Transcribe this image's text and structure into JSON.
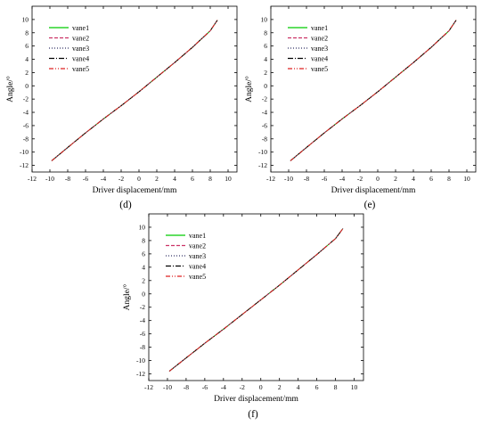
{
  "chart_data": [
    {
      "type": "line",
      "panel_label": "(d)",
      "xlabel": "Driver displacement/mm",
      "ylabel": "Angle/°",
      "xlim": [
        -12,
        11
      ],
      "ylim": [
        -13,
        12
      ],
      "xticks": [
        -12,
        -10,
        -8,
        -6,
        -4,
        -2,
        0,
        2,
        4,
        6,
        8,
        10
      ],
      "yticks": [
        -12,
        -10,
        -8,
        -6,
        -4,
        -2,
        0,
        2,
        4,
        6,
        8,
        10
      ],
      "grid": false,
      "legend_position": "top-left",
      "series": [
        {
          "name": "vane1",
          "color": "#00cc00",
          "dash": "solid",
          "x": [
            -9.8,
            -8,
            -6,
            -4,
            -2,
            0,
            2,
            4,
            6,
            8,
            8.8
          ],
          "y": [
            -11.3,
            -9.3,
            -7.1,
            -5.0,
            -3.0,
            -0.9,
            1.3,
            3.5,
            5.8,
            8.3,
            9.9
          ]
        },
        {
          "name": "vane2",
          "color": "#cc3366",
          "dash": "dashed",
          "x": [
            -9.8,
            -8,
            -6,
            -4,
            -2,
            0,
            2,
            4,
            6,
            8,
            8.8
          ],
          "y": [
            -11.3,
            -9.3,
            -7.1,
            -5.0,
            -3.0,
            -0.9,
            1.3,
            3.5,
            5.8,
            8.3,
            9.9
          ]
        },
        {
          "name": "vane3",
          "color": "#333366",
          "dash": "dotted",
          "x": [
            -9.8,
            -8,
            -6,
            -4,
            -2,
            0,
            2,
            4,
            6,
            8,
            8.8
          ],
          "y": [
            -11.3,
            -9.3,
            -7.1,
            -5.0,
            -3.0,
            -0.9,
            1.3,
            3.5,
            5.8,
            8.3,
            9.9
          ]
        },
        {
          "name": "vane4",
          "color": "#000000",
          "dash": "dashdot",
          "x": [
            -9.8,
            -8,
            -6,
            -4,
            -2,
            0,
            2,
            4,
            6,
            8,
            8.8
          ],
          "y": [
            -11.3,
            -9.3,
            -7.1,
            -5.0,
            -3.0,
            -0.9,
            1.3,
            3.5,
            5.8,
            8.3,
            9.9
          ]
        },
        {
          "name": "vane5",
          "color": "#dd2222",
          "dash": "dashdotdot",
          "x": [
            -9.8,
            -8,
            -6,
            -4,
            -2,
            0,
            2,
            4,
            6,
            8,
            8.8
          ],
          "y": [
            -11.3,
            -9.3,
            -7.1,
            -5.0,
            -3.0,
            -0.9,
            1.3,
            3.5,
            5.8,
            8.3,
            9.9
          ]
        }
      ]
    },
    {
      "type": "line",
      "panel_label": "(e)",
      "xlabel": "Driver displacement/mm",
      "ylabel": "Angle/°",
      "xlim": [
        -12,
        11
      ],
      "ylim": [
        -13,
        12
      ],
      "xticks": [
        -12,
        -10,
        -8,
        -6,
        -4,
        -2,
        0,
        2,
        4,
        6,
        8,
        10
      ],
      "yticks": [
        -12,
        -10,
        -8,
        -6,
        -4,
        -2,
        0,
        2,
        4,
        6,
        8,
        10
      ],
      "grid": false,
      "legend_position": "top-left",
      "series": [
        {
          "name": "vane1",
          "color": "#00cc00",
          "dash": "solid",
          "x": [
            -9.8,
            -8,
            -6,
            -4,
            -2,
            0,
            2,
            4,
            6,
            8,
            8.8
          ],
          "y": [
            -11.3,
            -9.3,
            -7.1,
            -5.0,
            -3.0,
            -0.9,
            1.3,
            3.5,
            5.8,
            8.3,
            9.9
          ]
        },
        {
          "name": "vane2",
          "color": "#cc3366",
          "dash": "dashed",
          "x": [
            -9.8,
            -8,
            -6,
            -4,
            -2,
            0,
            2,
            4,
            6,
            8,
            8.8
          ],
          "y": [
            -11.3,
            -9.3,
            -7.1,
            -5.0,
            -3.0,
            -0.9,
            1.3,
            3.5,
            5.8,
            8.3,
            9.9
          ]
        },
        {
          "name": "vane3",
          "color": "#333366",
          "dash": "dotted",
          "x": [
            -9.8,
            -8,
            -6,
            -4,
            -2,
            0,
            2,
            4,
            6,
            8,
            8.8
          ],
          "y": [
            -11.3,
            -9.3,
            -7.1,
            -5.0,
            -3.0,
            -0.9,
            1.3,
            3.5,
            5.8,
            8.3,
            9.9
          ]
        },
        {
          "name": "vane4",
          "color": "#000000",
          "dash": "dashdot",
          "x": [
            -9.8,
            -8,
            -6,
            -4,
            -2,
            0,
            2,
            4,
            6,
            8,
            8.8
          ],
          "y": [
            -11.3,
            -9.3,
            -7.1,
            -5.0,
            -3.0,
            -0.9,
            1.3,
            3.5,
            5.8,
            8.3,
            9.9
          ]
        },
        {
          "name": "vane5",
          "color": "#dd2222",
          "dash": "dashdotdot",
          "x": [
            -9.8,
            -8,
            -6,
            -4,
            -2,
            0,
            2,
            4,
            6,
            8,
            8.8
          ],
          "y": [
            -11.3,
            -9.3,
            -7.1,
            -5.0,
            -3.0,
            -0.9,
            1.3,
            3.5,
            5.8,
            8.3,
            9.9
          ]
        }
      ]
    },
    {
      "type": "line",
      "panel_label": "(f)",
      "xlabel": "Driver displacement/mm",
      "ylabel": "Angle/°",
      "xlim": [
        -12,
        11
      ],
      "ylim": [
        -13,
        12
      ],
      "xticks": [
        -12,
        -10,
        -8,
        -6,
        -4,
        -2,
        0,
        2,
        4,
        6,
        8,
        10
      ],
      "yticks": [
        -12,
        -10,
        -8,
        -6,
        -4,
        -2,
        0,
        2,
        4,
        6,
        8,
        10
      ],
      "grid": false,
      "legend_position": "top-left",
      "series": [
        {
          "name": "vane1",
          "color": "#00cc00",
          "dash": "solid",
          "x": [
            -9.8,
            -8,
            -6,
            -4,
            -2,
            0,
            2,
            4,
            6,
            8,
            8.8
          ],
          "y": [
            -11.6,
            -9.6,
            -7.4,
            -5.3,
            -3.1,
            -0.9,
            1.3,
            3.6,
            5.9,
            8.3,
            9.8
          ]
        },
        {
          "name": "vane2",
          "color": "#cc3366",
          "dash": "dashed",
          "x": [
            -9.8,
            -8,
            -6,
            -4,
            -2,
            0,
            2,
            4,
            6,
            8,
            8.8
          ],
          "y": [
            -11.6,
            -9.6,
            -7.4,
            -5.3,
            -3.1,
            -0.9,
            1.3,
            3.6,
            5.9,
            8.3,
            9.8
          ]
        },
        {
          "name": "vane3",
          "color": "#333366",
          "dash": "dotted",
          "x": [
            -9.8,
            -8,
            -6,
            -4,
            -2,
            0,
            2,
            4,
            6,
            8,
            8.8
          ],
          "y": [
            -11.6,
            -9.6,
            -7.4,
            -5.3,
            -3.1,
            -0.9,
            1.3,
            3.6,
            5.9,
            8.3,
            9.8
          ]
        },
        {
          "name": "vane4",
          "color": "#000000",
          "dash": "dashdot",
          "x": [
            -9.8,
            -8,
            -6,
            -4,
            -2,
            0,
            2,
            4,
            6,
            8,
            8.8
          ],
          "y": [
            -11.6,
            -9.6,
            -7.4,
            -5.3,
            -3.1,
            -0.9,
            1.3,
            3.6,
            5.9,
            8.3,
            9.8
          ]
        },
        {
          "name": "vane5",
          "color": "#dd2222",
          "dash": "dashdotdot",
          "x": [
            -9.8,
            -8,
            -6,
            -4,
            -2,
            0,
            2,
            4,
            6,
            8,
            8.8
          ],
          "y": [
            -11.6,
            -9.6,
            -7.4,
            -5.3,
            -3.1,
            -0.9,
            1.3,
            3.6,
            5.9,
            8.3,
            9.8
          ]
        }
      ]
    }
  ]
}
